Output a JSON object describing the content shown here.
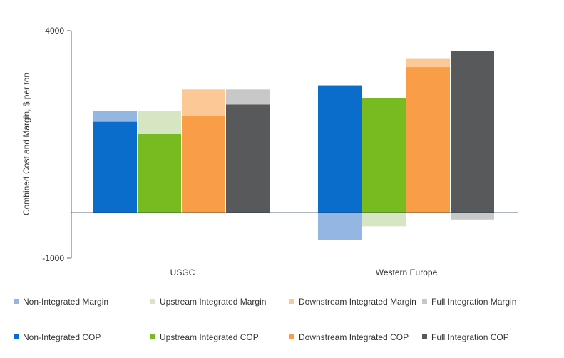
{
  "chart_data": {
    "type": "bar",
    "ylabel": "Combined Cost and Margin, $ per ton",
    "ylim": [
      -1000,
      4000
    ],
    "yticks": [
      4000,
      -1000
    ],
    "categories": [
      "USGC",
      "Western Europe"
    ],
    "series": [
      {
        "name": "Non-Integrated",
        "cop_label": "Non-Integrated COP",
        "margin_label": "Non-Integrated Margin",
        "cop_color": "#0a6ccb",
        "margin_color": "#93b6e2",
        "cop": [
          2000,
          2800
        ],
        "margin": [
          240,
          -600
        ]
      },
      {
        "name": "Upstream Integrated",
        "cop_label": "Upstream Integrated COP",
        "margin_label": "Upstream Integrated Margin",
        "cop_color": "#78bb20",
        "margin_color": "#d6e6c3",
        "cop": [
          1730,
          2520
        ],
        "margin": [
          510,
          -300
        ]
      },
      {
        "name": "Downstream Integrated",
        "cop_label": "Downstream Integrated COP",
        "margin_label": "Downstream Integrated Margin",
        "cop_color": "#f99d46",
        "margin_color": "#fbc896",
        "cop": [
          2120,
          3200
        ],
        "margin": [
          590,
          180
        ]
      },
      {
        "name": "Full Integration",
        "cop_label": "Full Integration COP",
        "margin_label": "Full Integration Margin",
        "cop_color": "#58595b",
        "margin_color": "#c8c8c8",
        "cop": [
          2380,
          3560
        ],
        "margin": [
          330,
          -150
        ]
      }
    ]
  }
}
